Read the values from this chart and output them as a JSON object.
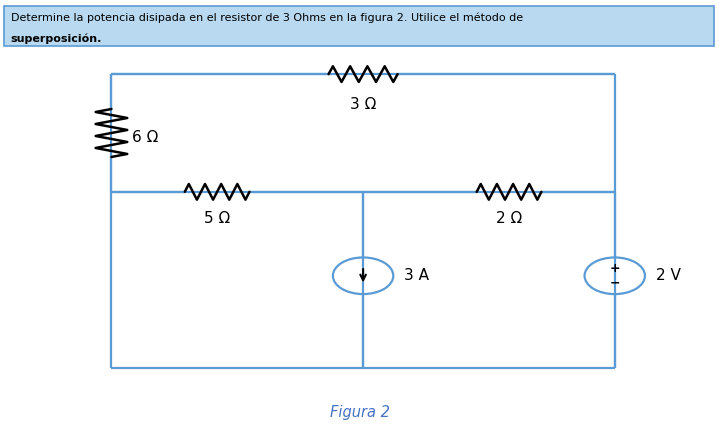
{
  "title_line1": "Determine la potencia disipada en el resistor de 3 Ohms en la figura 2. Utilice el método de",
  "title_line2": "superposición.",
  "fig_label": "Figura 2",
  "bg_color": "#ffffff",
  "highlight_color": "#b8d9f0",
  "border_color": "#5b9bd5",
  "circuit_color": "#000000",
  "circuit_line_color": "#5b9bd5",
  "text_color": "#000000",
  "fig_label_color": "#4472c4",
  "R3_label": "3 Ω",
  "R5_label": "5 Ω",
  "R2_label": "2 Ω",
  "R6_label": "6 Ω",
  "CS_label": "3 A",
  "VS_label": "2 V",
  "L": 0.155,
  "R": 0.855,
  "T": 0.83,
  "M": 0.56,
  "B": 0.155,
  "MX": 0.505
}
